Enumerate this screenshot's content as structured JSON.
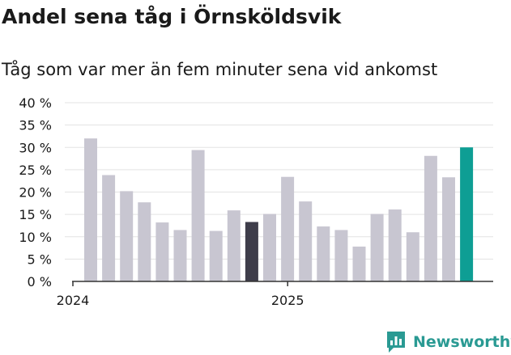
{
  "chart_data": {
    "type": "bar",
    "title": "Andel sena tåg i Örnsköldsvik",
    "subtitle": "Tåg som var mer än fem minuter sena vid ankomst",
    "values": [
      32,
      23.8,
      20.2,
      17.7,
      13.2,
      11.5,
      29.4,
      11.3,
      15.9,
      13.3,
      15.1,
      23.4,
      17.9,
      12.3,
      11.5,
      7.8,
      15.1,
      16.1,
      11.0,
      28.1,
      23.3,
      30.0
    ],
    "bar_colors": [
      "#c8c6d1",
      "#c8c6d1",
      "#c8c6d1",
      "#c8c6d1",
      "#c8c6d1",
      "#c8c6d1",
      "#c8c6d1",
      "#c8c6d1",
      "#c8c6d1",
      "#3e3d4a",
      "#c8c6d1",
      "#c8c6d1",
      "#c8c6d1",
      "#c8c6d1",
      "#c8c6d1",
      "#c8c6d1",
      "#c8c6d1",
      "#c8c6d1",
      "#c8c6d1",
      "#c8c6d1",
      "#c8c6d1",
      "#0e9e94"
    ],
    "y_ticks": [
      0,
      5,
      10,
      15,
      20,
      25,
      30,
      35,
      40
    ],
    "y_tick_labels": [
      "0 %",
      "5 %",
      "10 %",
      "15 %",
      "20 %",
      "25 %",
      "30 %",
      "35 %",
      "40 %"
    ],
    "ylim": [
      0,
      40
    ],
    "x_tick_labels": [
      {
        "label": "2024",
        "at_bar": 0
      },
      {
        "label": "2025",
        "at_bar": 12
      }
    ],
    "grid": true
  },
  "brand": {
    "name": "Newsworthy",
    "color": "#2a9a93"
  }
}
